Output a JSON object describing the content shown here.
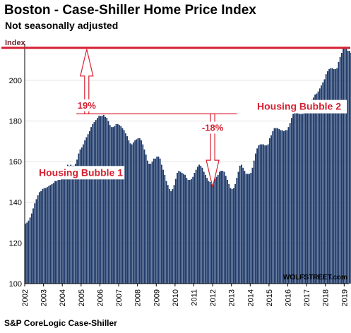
{
  "header": {
    "title": "Boston - Case-Shiller Home Price Index",
    "subtitle": "Not seasonally adjusted"
  },
  "footer": {
    "source": "S&P CoreLogic Case-Shiller"
  },
  "colors": {
    "bar": "#1f3b6b",
    "annotation": "#d62031",
    "axis_text": "#000000"
  },
  "chart_data": {
    "type": "bar",
    "title": "Boston - Case-Shiller Home Price Index",
    "subtitle": "Not seasonally adjusted",
    "ylabel": "Index",
    "ylim": [
      100,
      218
    ],
    "yticks": [
      100,
      120,
      140,
      160,
      180,
      200
    ],
    "xlim": [
      2002,
      2019.25
    ],
    "xticks": [
      "2002",
      "2003",
      "2004",
      "2005",
      "2006",
      "2007",
      "2008",
      "2009",
      "2010",
      "2011",
      "2012",
      "2013",
      "2014",
      "2015",
      "2016",
      "2017",
      "2018",
      "2019"
    ],
    "frequency": "monthly",
    "grid": true,
    "watermark": "WOLFSTREET.com",
    "series": [
      {
        "values": [
          129.5,
          130.0,
          131.0,
          132.5,
          134.5,
          137.0,
          139.5,
          141.5,
          143.5,
          145.0,
          145.5,
          146.5,
          147.0,
          147.0,
          147.5,
          148.0,
          148.5,
          149.0,
          149.5,
          150.5,
          150.5,
          151.0,
          151.0,
          151.5,
          154.0,
          155.5,
          157.5,
          158.5,
          158.0,
          158.5,
          158.0,
          158.0,
          159.0,
          161.0,
          164.0,
          166.0,
          167.0,
          168.5,
          170.5,
          172.0,
          173.5,
          175.0,
          177.0,
          178.5,
          179.5,
          180.5,
          181.5,
          182.5,
          182.5,
          182.5,
          183.0,
          182.0,
          181.5,
          180.0,
          178.0,
          177.0,
          177.0,
          177.5,
          178.5,
          178.5,
          178.0,
          177.5,
          176.5,
          175.5,
          174.0,
          172.5,
          170.5,
          169.0,
          168.5,
          169.5,
          170.5,
          171.0,
          171.5,
          171.5,
          170.5,
          168.5,
          166.0,
          163.5,
          160.5,
          159.0,
          159.0,
          160.0,
          161.5,
          161.5,
          162.5,
          162.5,
          161.5,
          158.5,
          156.0,
          153.5,
          150.5,
          148.5,
          146.5,
          145.5,
          146.5,
          148.5,
          151.5,
          154.5,
          155.5,
          155.0,
          154.5,
          154.0,
          153.5,
          152.0,
          151.0,
          151.0,
          151.5,
          152.5,
          154.5,
          156.0,
          157.5,
          158.5,
          158.0,
          157.0,
          155.0,
          153.5,
          152.0,
          150.5,
          150.0,
          149.0,
          150.0,
          151.5,
          152.5,
          153.5,
          155.0,
          155.5,
          155.5,
          155.0,
          153.0,
          151.0,
          149.0,
          147.0,
          146.5,
          147.0,
          149.0,
          152.0,
          155.0,
          158.0,
          158.5,
          157.0,
          155.5,
          154.0,
          154.0,
          154.0,
          154.5,
          157.0,
          160.5,
          164.0,
          166.5,
          168.0,
          168.5,
          168.5,
          168.5,
          168.0,
          168.0,
          168.5,
          171.5,
          173.0,
          175.0,
          176.5,
          176.5,
          176.5,
          176.0,
          175.5,
          175.5,
          175.0,
          175.5,
          175.5,
          177.0,
          179.0,
          181.5,
          183.5,
          184.5,
          184.5,
          184.0,
          183.5,
          183.5,
          183.5,
          184.0,
          186.5,
          188.0,
          188.0,
          189.0,
          190.5,
          191.5,
          193.0,
          193.5,
          194.5,
          196.0,
          197.5,
          199.0,
          200.5,
          203.0,
          204.5,
          205.5,
          206.0,
          206.0,
          205.5,
          205.5,
          206.0,
          209.0,
          211.5,
          213.5,
          216.0,
          216.5,
          215.5,
          214.5,
          214.5,
          213.5,
          215.0
        ]
      }
    ],
    "annotations": {
      "reference_line_label": "Index",
      "reference_value": 216,
      "left_label": "Housing Bubble 1",
      "right_label": "Housing Bubble 2",
      "rise_pct": "19%",
      "drop_pct": "-18%",
      "peak_reference_value": 183.5
    }
  }
}
